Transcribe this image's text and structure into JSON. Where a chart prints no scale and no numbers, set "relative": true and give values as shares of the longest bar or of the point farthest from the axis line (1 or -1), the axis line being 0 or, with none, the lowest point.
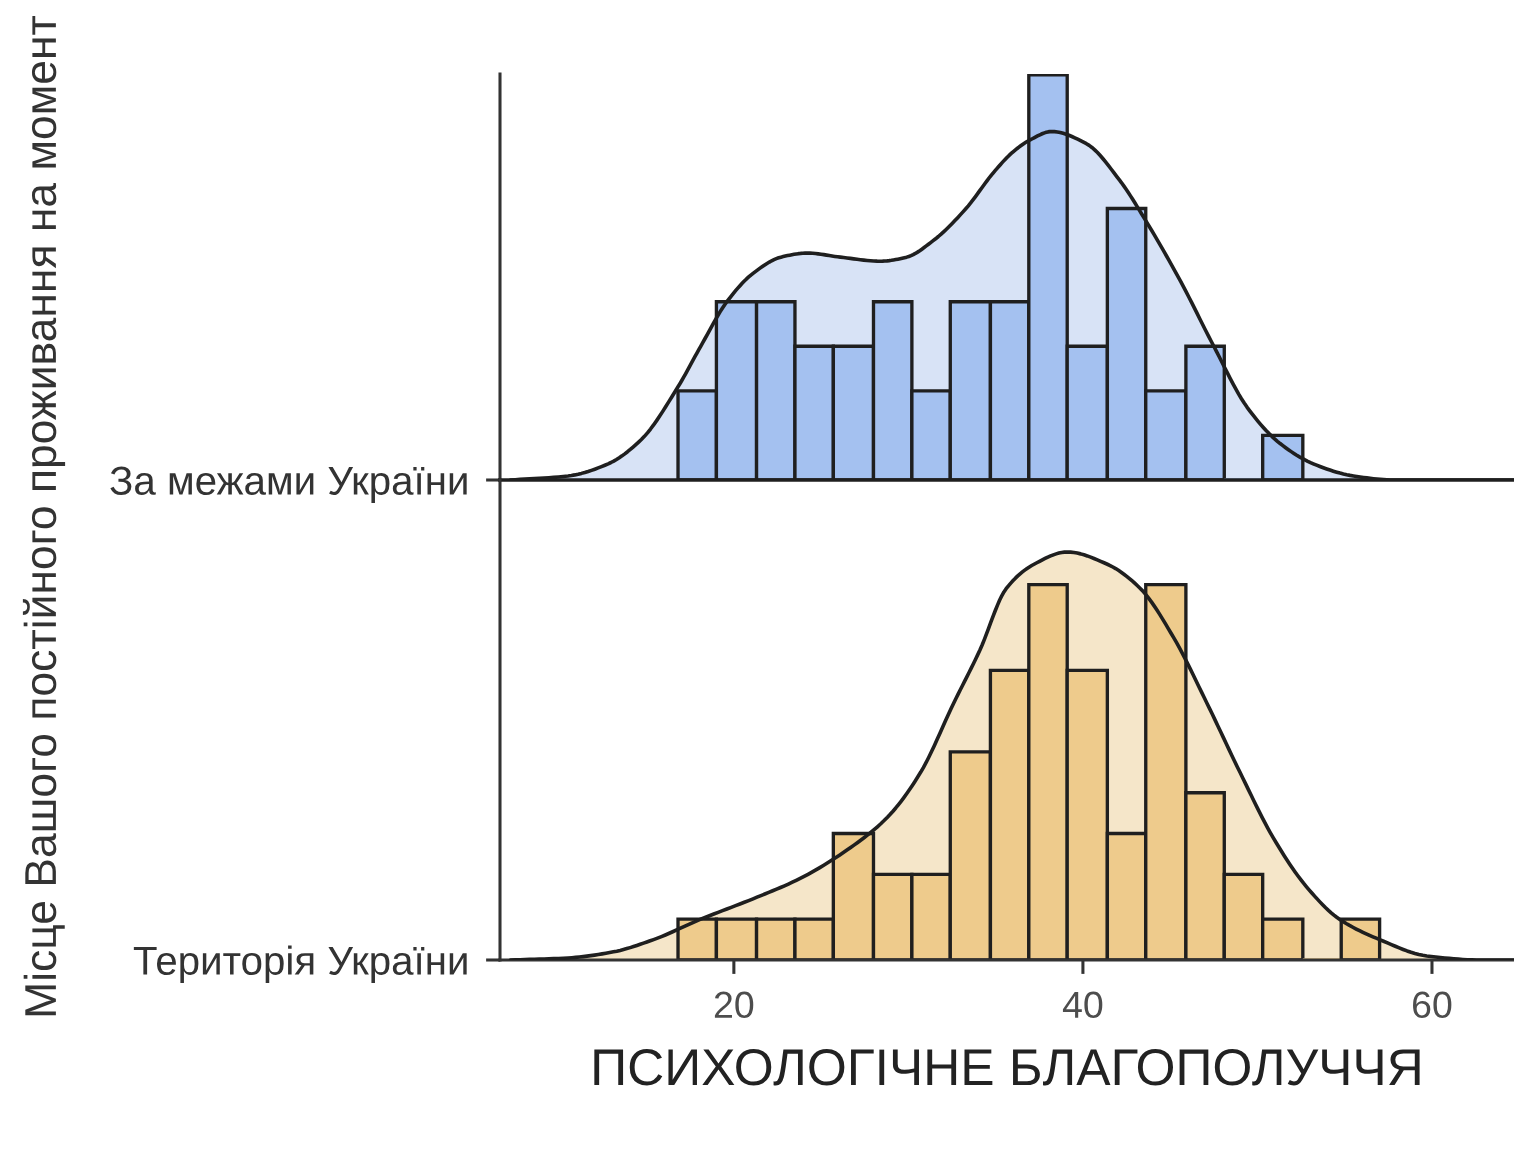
{
  "chart_data": [
    {
      "type": "histogram",
      "ylabel": "Місце Вашого постійного проживання на момент",
      "relative": true,
      "xlim": [
        6.6,
        64.7
      ],
      "tick_labels": "y",
      "bins": [
        16.8,
        19.0,
        21.3,
        23.5,
        25.7,
        28.0,
        30.2,
        32.4,
        34.7,
        36.9,
        39.1,
        41.4,
        43.6,
        45.9,
        48.1,
        50.3,
        52.6
      ],
      "series": [
        {
          "type": "area",
          "color": "#d8e3f6",
          "x": [
            7.2,
            10.5,
            12.8,
            14.7,
            16.8,
            18.1,
            19.6,
            21.1,
            22.7,
            24.2,
            26.1,
            28.4,
            29.9,
            31.4,
            33.3,
            34.9,
            36.0,
            37.0,
            38.2,
            40.2,
            42.1,
            43.6,
            45.6,
            47.5,
            49.4,
            51.3,
            53.2,
            55.5,
            57.8,
            64.7
          ],
          "values": [
            0,
            0.01,
            0.04,
            0.1,
            0.23,
            0.33,
            0.44,
            0.51,
            0.55,
            0.56,
            0.55,
            0.54,
            0.55,
            0.59,
            0.67,
            0.76,
            0.81,
            0.84,
            0.86,
            0.83,
            0.74,
            0.64,
            0.49,
            0.33,
            0.18,
            0.09,
            0.04,
            0.01,
            0,
            0
          ]
        },
        {
          "type": "histogram",
          "name": "За межами України",
          "color": "#a4c1f0",
          "values": [
            0.22,
            0.44,
            0.44,
            0.33,
            0.33,
            0.44,
            0.22,
            0.44,
            0.44,
            1,
            0.33,
            0.67,
            0.22,
            0.33,
            0,
            0.11
          ]
        }
      ]
    },
    {
      "type": "histogram",
      "xlabel": "ПСИХОЛОГІЧНЕ БЛАГОПОЛУЧЧЯ",
      "relative": true,
      "xlim": [
        6.6,
        64.7
      ],
      "xticks": [
        20,
        40,
        60
      ],
      "bins": [
        16.8,
        19.0,
        21.3,
        23.5,
        25.7,
        28.0,
        30.2,
        32.4,
        34.7,
        36.9,
        39.1,
        41.4,
        43.6,
        45.9,
        48.1,
        50.3,
        52.6,
        54.8,
        57.0
      ],
      "series": [
        {
          "type": "area",
          "color": "#f5e6c9",
          "x": [
            7.2,
            10.5,
            13.1,
            15.4,
            18.1,
            21.1,
            23.8,
            26.5,
            28.8,
            30.7,
            32.6,
            34.1,
            35.6,
            37.2,
            39.1,
            41.4,
            43.3,
            45.2,
            47.1,
            49.0,
            50.9,
            52.8,
            54.7,
            57.0,
            59.7,
            62.8,
            64.7
          ],
          "values": [
            0,
            0.005,
            0.02,
            0.05,
            0.1,
            0.15,
            0.2,
            0.27,
            0.35,
            0.46,
            0.63,
            0.76,
            0.91,
            0.97,
            1,
            0.97,
            0.91,
            0.79,
            0.63,
            0.46,
            0.3,
            0.18,
            0.1,
            0.05,
            0.01,
            0,
            0
          ]
        },
        {
          "type": "histogram",
          "name": "Територія України",
          "color": "#eecb8c",
          "values": [
            0.1,
            0.1,
            0.1,
            0.1,
            0.31,
            0.21,
            0.21,
            0.51,
            0.71,
            0.92,
            0.71,
            0.31,
            0.92,
            0.41,
            0.21,
            0.1,
            0,
            0.1
          ]
        }
      ]
    }
  ]
}
